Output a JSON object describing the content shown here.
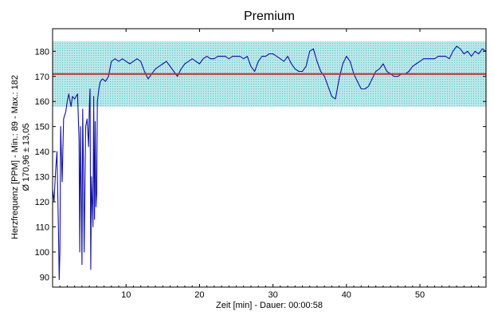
{
  "chart_data": {
    "type": "line",
    "title": "Premium",
    "xlabel": "Zeit [min] - Dauer: 00:00:58",
    "ylabel_line1": "Herzfrequenz [PPM] - Min.: 89 - Max.: 182",
    "ylabel_line2": "Ø 170,96 ± 13,05",
    "xlim": [
      0,
      59
    ],
    "ylim": [
      86,
      189
    ],
    "x_ticks": [
      10,
      20,
      30,
      40,
      50
    ],
    "y_ticks": [
      90,
      100,
      110,
      120,
      130,
      140,
      150,
      160,
      170,
      180
    ],
    "mean": 170.96,
    "std": 13.05,
    "band": [
      157.91,
      184.01
    ],
    "colors": {
      "line": "#1010b0",
      "mean": "#e02020",
      "band_fill": "#b8e8e8",
      "band_dots": "#58c8c8",
      "frame": "#000000"
    },
    "series": [
      {
        "points": [
          [
            0,
            125
          ],
          [
            0.2,
            120
          ],
          [
            0.4,
            132
          ],
          [
            0.6,
            140
          ],
          [
            0.8,
            108
          ],
          [
            0.9,
            89
          ],
          [
            1.0,
            100
          ],
          [
            1.1,
            150
          ],
          [
            1.3,
            128
          ],
          [
            1.5,
            153
          ],
          [
            1.8,
            156
          ],
          [
            2.0,
            160
          ],
          [
            2.2,
            163
          ],
          [
            2.5,
            158
          ],
          [
            2.7,
            162
          ],
          [
            3.0,
            161
          ],
          [
            3.2,
            162
          ],
          [
            3.4,
            163
          ],
          [
            3.6,
            145
          ],
          [
            3.7,
            100
          ],
          [
            3.8,
            150
          ],
          [
            3.9,
            123
          ],
          [
            4.0,
            95
          ],
          [
            4.1,
            157
          ],
          [
            4.2,
            135
          ],
          [
            4.3,
            100
          ],
          [
            4.5,
            150
          ],
          [
            4.7,
            153
          ],
          [
            4.9,
            142
          ],
          [
            5.0,
            158
          ],
          [
            5.1,
            165
          ],
          [
            5.2,
            93
          ],
          [
            5.3,
            130
          ],
          [
            5.5,
            110
          ],
          [
            5.6,
            162
          ],
          [
            5.7,
            113
          ],
          [
            5.8,
            152
          ],
          [
            5.9,
            118
          ],
          [
            6.0,
            123
          ],
          [
            6.1,
            160
          ],
          [
            6.3,
            165
          ],
          [
            6.5,
            168
          ],
          [
            6.8,
            169
          ],
          [
            7.2,
            168
          ],
          [
            7.6,
            170
          ],
          [
            8.0,
            176
          ],
          [
            8.5,
            177
          ],
          [
            9.0,
            176
          ],
          [
            9.5,
            177
          ],
          [
            10.0,
            176
          ],
          [
            10.5,
            175
          ],
          [
            11.0,
            176
          ],
          [
            11.5,
            177
          ],
          [
            12.0,
            176
          ],
          [
            12.5,
            172
          ],
          [
            13.0,
            169
          ],
          [
            13.5,
            171
          ],
          [
            14.0,
            173
          ],
          [
            14.5,
            174
          ],
          [
            15.0,
            175
          ],
          [
            15.5,
            176
          ],
          [
            16.0,
            174
          ],
          [
            16.5,
            172
          ],
          [
            17.0,
            170
          ],
          [
            17.5,
            173
          ],
          [
            18.0,
            175
          ],
          [
            18.5,
            176
          ],
          [
            19.0,
            177
          ],
          [
            19.5,
            176
          ],
          [
            20.0,
            175
          ],
          [
            20.5,
            177
          ],
          [
            21.0,
            178
          ],
          [
            21.5,
            177
          ],
          [
            22.0,
            177
          ],
          [
            22.5,
            178
          ],
          [
            23.0,
            178
          ],
          [
            23.5,
            178
          ],
          [
            24.0,
            177
          ],
          [
            24.5,
            178
          ],
          [
            25.0,
            178
          ],
          [
            25.5,
            178
          ],
          [
            26.0,
            177
          ],
          [
            26.5,
            178
          ],
          [
            27.0,
            174
          ],
          [
            27.5,
            172
          ],
          [
            28.0,
            176
          ],
          [
            28.5,
            178
          ],
          [
            29.0,
            178
          ],
          [
            29.5,
            179
          ],
          [
            30.0,
            179
          ],
          [
            30.5,
            178
          ],
          [
            31.0,
            177
          ],
          [
            31.5,
            176
          ],
          [
            32.0,
            178
          ],
          [
            32.5,
            175
          ],
          [
            33.0,
            173
          ],
          [
            33.5,
            172
          ],
          [
            34.0,
            172
          ],
          [
            34.5,
            174
          ],
          [
            35.0,
            180
          ],
          [
            35.5,
            181
          ],
          [
            36.0,
            176
          ],
          [
            36.5,
            172
          ],
          [
            37.0,
            170
          ],
          [
            37.5,
            166
          ],
          [
            38.0,
            162
          ],
          [
            38.5,
            161
          ],
          [
            39.0,
            169
          ],
          [
            39.5,
            175
          ],
          [
            40.0,
            178
          ],
          [
            40.5,
            176
          ],
          [
            41.0,
            171
          ],
          [
            41.5,
            168
          ],
          [
            42.0,
            165
          ],
          [
            42.5,
            165
          ],
          [
            43.0,
            166
          ],
          [
            43.5,
            169
          ],
          [
            44.0,
            172
          ],
          [
            44.5,
            173
          ],
          [
            45.0,
            175
          ],
          [
            45.5,
            172
          ],
          [
            46.0,
            171
          ],
          [
            46.5,
            170
          ],
          [
            47.0,
            170
          ],
          [
            47.5,
            171
          ],
          [
            48.0,
            171
          ],
          [
            48.5,
            172
          ],
          [
            49.0,
            174
          ],
          [
            49.5,
            175
          ],
          [
            50.0,
            176
          ],
          [
            50.5,
            177
          ],
          [
            51.0,
            177
          ],
          [
            51.5,
            177
          ],
          [
            52.0,
            177
          ],
          [
            52.5,
            178
          ],
          [
            53.0,
            178
          ],
          [
            53.5,
            178
          ],
          [
            54.0,
            177
          ],
          [
            54.5,
            180
          ],
          [
            55.0,
            182
          ],
          [
            55.5,
            181
          ],
          [
            56.0,
            179
          ],
          [
            56.5,
            180
          ],
          [
            57.0,
            178
          ],
          [
            57.5,
            180
          ],
          [
            58.0,
            179
          ],
          [
            58.5,
            181
          ],
          [
            59.0,
            180
          ]
        ]
      }
    ]
  }
}
